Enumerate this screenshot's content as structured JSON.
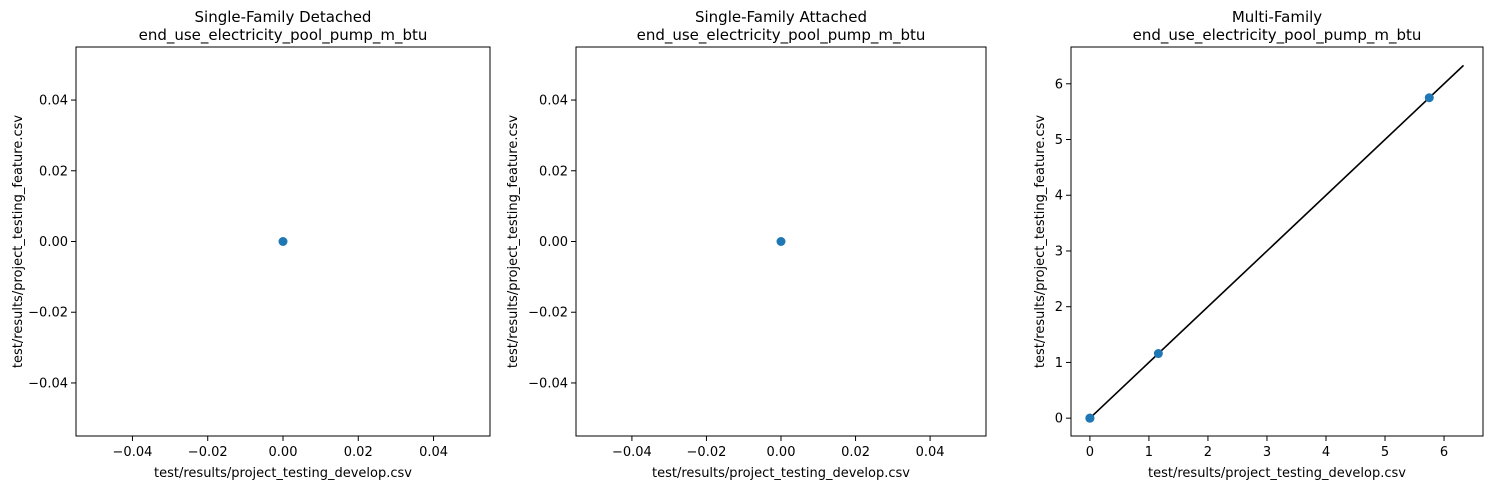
{
  "colors": {
    "point": "#1f77b4",
    "reference_line": "#000000",
    "axes": "#000000",
    "background": "#ffffff"
  },
  "chart_data": [
    {
      "type": "scatter",
      "title": "Single-Family Detached",
      "subtitle": "end_use_electricity_pool_pump_m_btu",
      "xlabel": "test/results/project_testing_develop.csv",
      "ylabel": "test/results/project_testing_feature.csv",
      "xlim": [
        -0.055,
        0.055
      ],
      "ylim": [
        -0.055,
        0.055
      ],
      "xticks": [
        -0.04,
        -0.02,
        0.0,
        0.02,
        0.04
      ],
      "xtick_labels": [
        "−0.04",
        "−0.02",
        "0.00",
        "0.02",
        "0.04"
      ],
      "yticks": [
        -0.04,
        -0.02,
        0.0,
        0.02,
        0.04
      ],
      "ytick_labels": [
        "−0.04",
        "−0.02",
        "0.00",
        "0.02",
        "0.04"
      ],
      "points": [
        {
          "x": 0.0,
          "y": 0.0
        }
      ],
      "reference_line": null,
      "grid": false
    },
    {
      "type": "scatter",
      "title": "Single-Family Attached",
      "subtitle": "end_use_electricity_pool_pump_m_btu",
      "xlabel": "test/results/project_testing_develop.csv",
      "ylabel": "test/results/project_testing_feature.csv",
      "xlim": [
        -0.055,
        0.055
      ],
      "ylim": [
        -0.055,
        0.055
      ],
      "xticks": [
        -0.04,
        -0.02,
        0.0,
        0.02,
        0.04
      ],
      "xtick_labels": [
        "−0.04",
        "−0.02",
        "0.00",
        "0.02",
        "0.04"
      ],
      "yticks": [
        -0.04,
        -0.02,
        0.0,
        0.02,
        0.04
      ],
      "ytick_labels": [
        "−0.04",
        "−0.02",
        "0.00",
        "0.02",
        "0.04"
      ],
      "points": [
        {
          "x": 0.0,
          "y": 0.0
        }
      ],
      "reference_line": null,
      "grid": false
    },
    {
      "type": "scatter",
      "title": "Multi-Family",
      "subtitle": "end_use_electricity_pool_pump_m_btu",
      "xlabel": "test/results/project_testing_develop.csv",
      "ylabel": "test/results/project_testing_feature.csv",
      "xlim": [
        -0.32,
        6.66
      ],
      "ylim": [
        -0.32,
        6.66
      ],
      "xticks": [
        0,
        1,
        2,
        3,
        4,
        5,
        6
      ],
      "xtick_labels": [
        "0",
        "1",
        "2",
        "3",
        "4",
        "5",
        "6"
      ],
      "yticks": [
        0,
        1,
        2,
        3,
        4,
        5,
        6
      ],
      "ytick_labels": [
        "0",
        "1",
        "2",
        "3",
        "4",
        "5",
        "6"
      ],
      "points": [
        {
          "x": 0.0,
          "y": 0.0
        },
        {
          "x": 0.0,
          "y": 0.0
        },
        {
          "x": 1.16,
          "y": 1.16
        },
        {
          "x": 5.75,
          "y": 5.75
        }
      ],
      "reference_line": {
        "from": [
          0,
          0
        ],
        "to": [
          6.33,
          6.33
        ]
      },
      "grid": false
    }
  ]
}
